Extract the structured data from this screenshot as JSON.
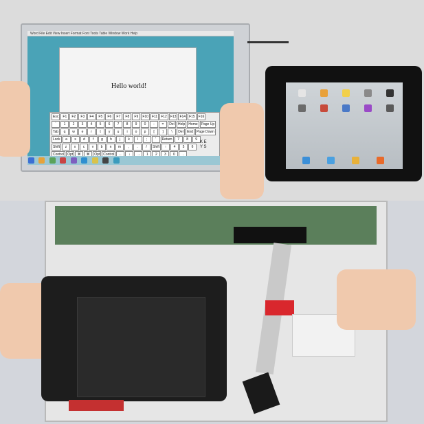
{
  "top_photo": {
    "laptop_menu": "Word  File  Edit  View  Insert  Format  Font  Tools  Table  Window  Work  Help",
    "document_text": "Hello world!",
    "keyboard_rows": [
      [
        "Esc",
        "F1",
        "F2",
        "F3",
        "F4",
        "F5",
        "F6",
        "F7",
        "F8",
        "F9",
        "F10",
        "F11",
        "F12",
        "F13",
        "F14",
        "F15",
        "F16"
      ],
      [
        "`",
        "1",
        "2",
        "3",
        "4",
        "5",
        "6",
        "7",
        "8",
        "9",
        "0",
        "-",
        "=",
        "Del",
        "Help",
        "Home",
        "Page Up"
      ],
      [
        "Tab",
        "q",
        "w",
        "e",
        "r",
        "t",
        "y",
        "u",
        "i",
        "o",
        "p",
        "[",
        "]",
        "\\",
        "Del",
        "End",
        "Page Down"
      ],
      [
        "Lock",
        "a",
        "s",
        "d",
        "f",
        "g",
        "h",
        "j",
        "k",
        "l",
        ";",
        "'",
        "Return",
        "7",
        "8",
        "9"
      ],
      [
        "Shift",
        "z",
        "x",
        "c",
        "v",
        "b",
        "n",
        "m",
        ",",
        ".",
        "/",
        "Shift",
        "↑",
        "4",
        "5",
        "6"
      ],
      [
        "Control",
        "Opt",
        "⌘",
        "⌘",
        "Opt",
        "Control",
        "←",
        "↓",
        "→",
        "1",
        "2",
        "3",
        "0",
        "."
      ]
    ],
    "keyboard_side_label": "K E Y S",
    "colors": {
      "desktop": "#4aa3b7",
      "document": "#f4f4f4",
      "ipad_frame": "#111111"
    }
  },
  "bottom_photo": {
    "colors": {
      "tablet": "#1d1d1d",
      "pcb": "#5b7f5b",
      "tape": "#d9272d"
    }
  }
}
